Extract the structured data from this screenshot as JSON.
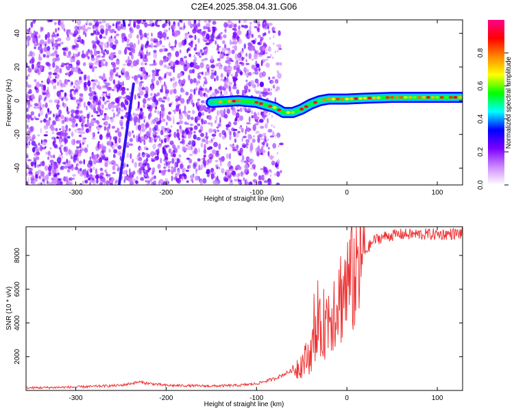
{
  "title": "C2E4.2025.358.04.31.G06",
  "chart_data": [
    {
      "type": "heatmap",
      "title": "C2E4.2025.358.04.31.G06",
      "xlabel": "Height of straight line (km)",
      "ylabel": "Frequency (Hz)",
      "xlim": [
        -355,
        128
      ],
      "ylim": [
        -50,
        48
      ],
      "xticks": [
        -300,
        -200,
        -100,
        0,
        100
      ],
      "yticks": [
        -40,
        -20,
        0,
        20,
        40
      ],
      "xtick_labels": [
        "-300",
        "-200",
        "-100",
        "0",
        "100"
      ],
      "ytick_labels": [
        "-40",
        "-20",
        "0",
        "20",
        "40"
      ],
      "colorbar": {
        "label": "Normalized spectral amplitude",
        "range": [
          0,
          1
        ],
        "ticks": [
          0.0,
          0.2,
          0.4,
          0.6,
          0.8
        ],
        "tick_labels": [
          "0.0",
          "0.2",
          "0.4",
          "0.6",
          "0.8"
        ],
        "colors": [
          "#ffffff",
          "#cc88ff",
          "#7a00ff",
          "#0000ff",
          "#00ffff",
          "#00ff00",
          "#ffff00",
          "#ff8800",
          "#ff0000",
          "#ff0088"
        ]
      },
      "noise_region_km": [
        -355,
        -100
      ],
      "oblique_streak": {
        "x": [
          -252,
          -236
        ],
        "y": [
          -50,
          10
        ]
      },
      "signal_track": {
        "x": [
          -150,
          -120,
          -100,
          -80,
          -70,
          -60,
          -50,
          -40,
          -30,
          -20,
          -10,
          0,
          20,
          50,
          80,
          100,
          128
        ],
        "y": [
          -1,
          0,
          -1,
          -4,
          -7,
          -7,
          -5,
          -2,
          0,
          1,
          1,
          1,
          1.5,
          2,
          2,
          2,
          2
        ]
      }
    },
    {
      "type": "line",
      "xlabel": "Height of straight line (km)",
      "ylabel": "SNR (10 * v/v)",
      "xlim": [
        -355,
        128
      ],
      "ylim": [
        0,
        9700
      ],
      "xticks": [
        -300,
        -200,
        -100,
        0,
        100
      ],
      "yticks": [
        2000,
        4000,
        6000,
        8000
      ],
      "xtick_labels": [
        "-300",
        "-200",
        "-100",
        "0",
        "100"
      ],
      "ytick_labels": [
        "2000",
        "4000",
        "6000",
        "8000"
      ],
      "color": "#ee3333",
      "series": [
        {
          "name": "SNR",
          "x": [
            -355,
            -300,
            -250,
            -230,
            -220,
            -200,
            -150,
            -120,
            -100,
            -80,
            -60,
            -50,
            -40,
            -30,
            -20,
            -10,
            0,
            10,
            20,
            30,
            40,
            50,
            60,
            80,
            100,
            128
          ],
          "values": [
            150,
            200,
            300,
            500,
            420,
            300,
            260,
            300,
            400,
            700,
            1200,
            1600,
            2200,
            3500,
            4500,
            5400,
            6200,
            7200,
            8200,
            8900,
            9100,
            9200,
            9250,
            9250,
            9250,
            9300
          ]
        }
      ]
    }
  ]
}
